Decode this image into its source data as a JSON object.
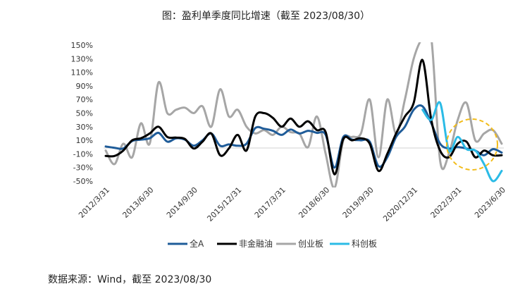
{
  "title": "图：盈利单季度同比增速（截至 2023/08/30）",
  "source": "数据来源：Wind，截至 2023/08/30",
  "chart_data": {
    "type": "line",
    "title": "图：盈利单季度同比增速（截至 2023/08/30）",
    "xlabel": "",
    "ylabel": "",
    "ylim": [
      -50,
      150
    ],
    "y_ticks": [
      "150%",
      "130%",
      "110%",
      "90%",
      "70%",
      "50%",
      "30%",
      "10%",
      "-10%",
      "-30%",
      "-50%"
    ],
    "x_ticks": [
      "2012/3/31",
      "2013/6/30",
      "2014/9/30",
      "2015/12/31",
      "2017/3/31",
      "2018/6/30",
      "2019/9/30",
      "2020/12/31",
      "2022/3/31",
      "2023/6/30"
    ],
    "x_start": 2012.25,
    "x_end": 2023.5,
    "grid": false,
    "legend_position": "bottom",
    "annotation": "dashed-circle highlighting 2023",
    "series": [
      {
        "name": "全A",
        "color": "#1f5c99",
        "width": 3,
        "x": [
          2012.25,
          2012.5,
          2012.75,
          2013.0,
          2013.25,
          2013.5,
          2013.75,
          2014.0,
          2014.25,
          2014.5,
          2014.75,
          2015.0,
          2015.25,
          2015.5,
          2015.75,
          2016.0,
          2016.25,
          2016.5,
          2016.75,
          2017.0,
          2017.25,
          2017.5,
          2017.75,
          2018.0,
          2018.25,
          2018.5,
          2018.75,
          2019.0,
          2019.25,
          2019.5,
          2019.75,
          2020.0,
          2020.25,
          2020.5,
          2020.75,
          2021.0,
          2021.25,
          2021.5,
          2021.75,
          2022.0,
          2022.25,
          2022.5,
          2022.75,
          2023.0,
          2023.25,
          2023.5
        ],
        "y": [
          1,
          -1,
          -2,
          9,
          11,
          13,
          21,
          8,
          13,
          11,
          2,
          10,
          20,
          2,
          4,
          2,
          5,
          28,
          27,
          24,
          18,
          26,
          20,
          24,
          21,
          18,
          -30,
          15,
          11,
          10,
          8,
          -28,
          -15,
          15,
          30,
          55,
          60,
          35,
          5,
          -2,
          0,
          -2,
          -5,
          -12,
          -3,
          -8
        ]
      },
      {
        "name": "非金融油",
        "color": "#000000",
        "width": 3,
        "x": [
          2012.25,
          2012.5,
          2012.75,
          2013.0,
          2013.25,
          2013.5,
          2013.75,
          2014.0,
          2014.25,
          2014.5,
          2014.75,
          2015.0,
          2015.25,
          2015.5,
          2015.75,
          2016.0,
          2016.25,
          2016.5,
          2016.75,
          2017.0,
          2017.25,
          2017.5,
          2017.75,
          2018.0,
          2018.25,
          2018.5,
          2018.75,
          2019.0,
          2019.25,
          2019.5,
          2019.75,
          2020.0,
          2020.25,
          2020.5,
          2020.75,
          2021.0,
          2021.25,
          2021.5,
          2021.75,
          2022.0,
          2022.25,
          2022.5,
          2022.75,
          2023.0,
          2023.25,
          2023.5
        ],
        "y": [
          -13,
          -13,
          -5,
          10,
          13,
          20,
          30,
          15,
          14,
          12,
          -2,
          8,
          20,
          -12,
          -2,
          18,
          -5,
          45,
          50,
          43,
          30,
          42,
          30,
          38,
          25,
          22,
          -40,
          12,
          10,
          13,
          5,
          -35,
          -10,
          20,
          45,
          65,
          128,
          40,
          -5,
          -15,
          5,
          8,
          -15,
          -5,
          -12,
          -12
        ]
      },
      {
        "name": "创业板",
        "color": "#a6a6a6",
        "width": 3,
        "x": [
          2012.25,
          2012.5,
          2012.75,
          2013.0,
          2013.25,
          2013.5,
          2013.75,
          2014.0,
          2014.25,
          2014.5,
          2014.75,
          2015.0,
          2015.25,
          2015.5,
          2015.75,
          2016.0,
          2016.25,
          2016.5,
          2016.75,
          2017.0,
          2017.25,
          2017.5,
          2017.75,
          2018.0,
          2018.25,
          2018.5,
          2018.75,
          2019.0,
          2019.25,
          2019.5,
          2019.75,
          2020.0,
          2020.25,
          2020.5,
          2020.75,
          2021.0,
          2021.25,
          2021.5,
          2021.75,
          2022.0,
          2022.25,
          2022.5,
          2022.75,
          2023.0,
          2023.25,
          2023.5
        ],
        "y": [
          -5,
          -25,
          5,
          -15,
          35,
          5,
          95,
          50,
          55,
          58,
          50,
          60,
          30,
          85,
          45,
          55,
          30,
          20,
          25,
          18,
          30,
          22,
          20,
          0,
          45,
          -10,
          -60,
          10,
          15,
          20,
          70,
          -15,
          70,
          20,
          70,
          130,
          160,
          160,
          -20,
          -10,
          40,
          65,
          10,
          20,
          25,
          5
        ]
      },
      {
        "name": "科创板",
        "color": "#2bbbe6",
        "width": 3,
        "x": [
          2021.25,
          2021.5,
          2021.75,
          2022.0,
          2022.25,
          2022.5,
          2022.75,
          2023.0,
          2023.25,
          2023.5
        ],
        "y": [
          55,
          40,
          65,
          -5,
          15,
          -3,
          -5,
          -25,
          -50,
          -35
        ]
      }
    ]
  }
}
